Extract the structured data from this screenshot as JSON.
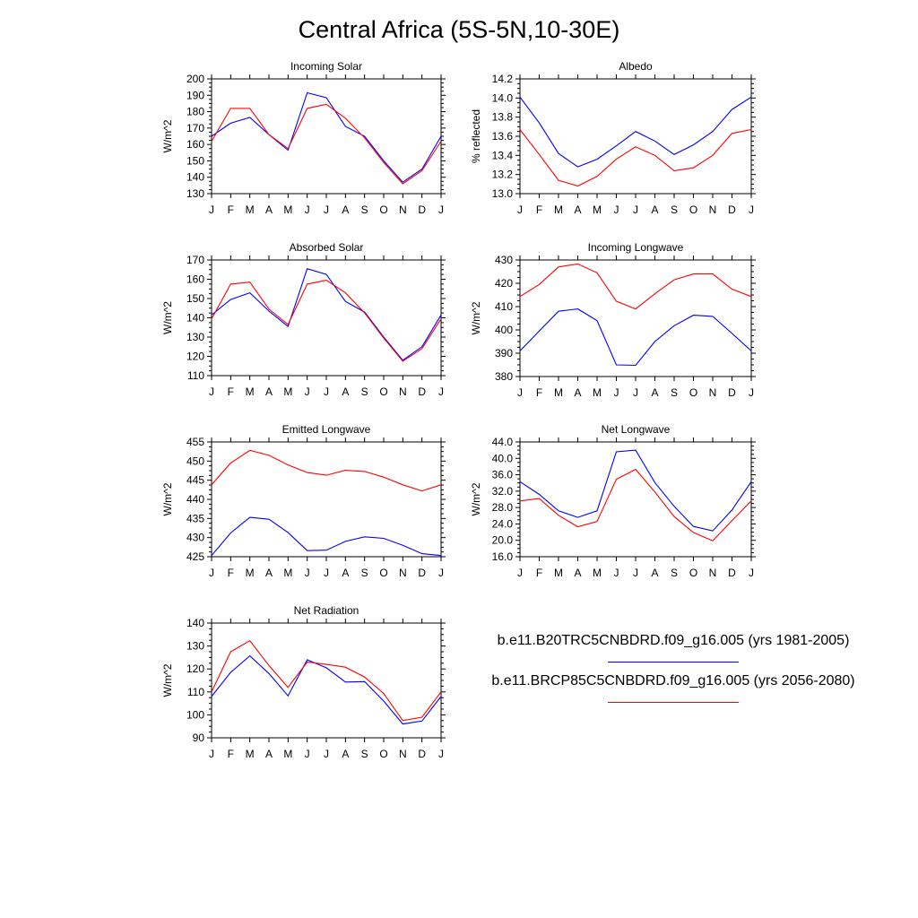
{
  "figure": {
    "title": "Central Africa (5S-5N,10-30E)",
    "months": [
      "J",
      "F",
      "M",
      "A",
      "M",
      "J",
      "J",
      "A",
      "S",
      "O",
      "N",
      "D",
      "J"
    ],
    "legend": [
      {
        "label": "b.e11.B20TRC5CNBDRD.f09_g16.005 (yrs 1981-2005)",
        "color": "#0000ff"
      },
      {
        "label": "b.e11.BRCP85C5CNBDRD.f09_g16.005 (yrs 2056-2080)",
        "color": "#ff0000"
      }
    ],
    "colors": {
      "series1": "#0000ff",
      "series2": "#ff0000"
    }
  },
  "chart_data": [
    {
      "type": "line",
      "title": "Incoming Solar",
      "xlabel": "",
      "ylabel": "W/m^2",
      "ylim": [
        130,
        200
      ],
      "yticks": [
        "130",
        "140",
        "150",
        "160",
        "170",
        "180",
        "190",
        "200"
      ],
      "series": [
        {
          "name": "b.e11.B20TRC5CNBDRD.f09_g16.005 (yrs 1981-2005)",
          "values": [
            165,
            173,
            176.5,
            166,
            156.5,
            191.5,
            188.5,
            171,
            165,
            150,
            137,
            145,
            165
          ]
        },
        {
          "name": "b.e11.BRCP85C5CNBDRD.f09_g16.005 (yrs 2056-2080)",
          "values": [
            162,
            182,
            182,
            166,
            157.5,
            182,
            184.5,
            176,
            164,
            149,
            136,
            144,
            162
          ]
        }
      ]
    },
    {
      "type": "line",
      "title": "Albedo",
      "xlabel": "",
      "ylabel": "% reflected",
      "ylim": [
        13.0,
        14.2
      ],
      "yticks": [
        "13.0",
        "13.2",
        "13.4",
        "13.6",
        "13.8",
        "14.0",
        "14.2"
      ],
      "series": [
        {
          "name": "b.e11.B20TRC5CNBDRD.f09_g16.005 (yrs 1981-2005)",
          "values": [
            14.01,
            13.74,
            13.42,
            13.28,
            13.36,
            13.5,
            13.65,
            13.55,
            13.41,
            13.51,
            13.65,
            13.88,
            14.01
          ]
        },
        {
          "name": "b.e11.BRCP85C5CNBDRD.f09_g16.005 (yrs 2056-2080)",
          "values": [
            13.67,
            13.41,
            13.14,
            13.08,
            13.18,
            13.36,
            13.49,
            13.4,
            13.24,
            13.27,
            13.4,
            13.63,
            13.67
          ]
        }
      ]
    },
    {
      "type": "line",
      "title": "Absorbed Solar",
      "xlabel": "",
      "ylabel": "W/m^2",
      "ylim": [
        110,
        170
      ],
      "yticks": [
        "110",
        "120",
        "130",
        "140",
        "150",
        "160",
        "170"
      ],
      "series": [
        {
          "name": "b.e11.B20TRC5CNBDRD.f09_g16.005 (yrs 1981-2005)",
          "values": [
            141.5,
            149.5,
            153,
            143.5,
            135.5,
            165.5,
            162.5,
            148.5,
            143,
            130,
            118,
            125,
            141.5
          ]
        },
        {
          "name": "b.e11.BRCP85C5CNBDRD.f09_g16.005 (yrs 2056-2080)",
          "values": [
            139.5,
            157.5,
            158.5,
            144.5,
            136.5,
            157.5,
            159.5,
            153,
            142.5,
            129.5,
            117.5,
            124,
            139.5
          ]
        }
      ]
    },
    {
      "type": "line",
      "title": "Incoming Longwave",
      "xlabel": "",
      "ylabel": "W/m^2",
      "ylim": [
        380,
        430
      ],
      "yticks": [
        "380",
        "390",
        "400",
        "410",
        "420",
        "430"
      ],
      "series": [
        {
          "name": "b.e11.B20TRC5CNBDRD.f09_g16.005 (yrs 1981-2005)",
          "values": [
            391,
            399.5,
            408,
            409,
            404,
            385,
            384.8,
            395,
            401.8,
            406.3,
            405.8,
            398.5,
            391
          ]
        },
        {
          "name": "b.e11.BRCP85C5CNBDRD.f09_g16.005 (yrs 2056-2080)",
          "values": [
            414.3,
            419.5,
            427,
            428.3,
            424.5,
            412.3,
            409,
            415.5,
            421.5,
            424,
            424,
            417.5,
            414.3
          ]
        }
      ]
    },
    {
      "type": "line",
      "title": "Emitted Longwave",
      "xlabel": "",
      "ylabel": "W/m^2",
      "ylim": [
        425,
        455
      ],
      "yticks": [
        "425",
        "430",
        "435",
        "440",
        "445",
        "450",
        "455"
      ],
      "series": [
        {
          "name": "b.e11.B20TRC5CNBDRD.f09_g16.005 (yrs 1981-2005)",
          "values": [
            425.3,
            431.2,
            435.3,
            434.8,
            431.3,
            426.6,
            426.7,
            429,
            430.2,
            429.8,
            428,
            425.8,
            425.3
          ]
        },
        {
          "name": "b.e11.BRCP85C5CNBDRD.f09_g16.005 (yrs 2056-2080)",
          "values": [
            443.8,
            449.5,
            452.8,
            451.5,
            449,
            447,
            446.3,
            447.6,
            447.3,
            445.8,
            443.8,
            442.2,
            443.8
          ]
        }
      ]
    },
    {
      "type": "line",
      "title": "Net Longwave",
      "xlabel": "",
      "ylabel": "W/m^2",
      "ylim": [
        16.0,
        44.0
      ],
      "yticks": [
        "16.0",
        "20.0",
        "24.0",
        "28.0",
        "32.0",
        "36.0",
        "40.0",
        "44.0"
      ],
      "series": [
        {
          "name": "b.e11.B20TRC5CNBDRD.f09_g16.005 (yrs 1981-2005)",
          "values": [
            34.3,
            31.2,
            27.2,
            25.6,
            27.2,
            41.6,
            42,
            34.1,
            28.3,
            23.4,
            22.3,
            27.4,
            34.3
          ]
        },
        {
          "name": "b.e11.BRCP85C5CNBDRD.f09_g16.005 (yrs 2056-2080)",
          "values": [
            29.6,
            30.2,
            26.1,
            23.3,
            24.6,
            34.9,
            37.3,
            31.8,
            25.8,
            21.9,
            19.9,
            24.8,
            29.6
          ]
        }
      ]
    },
    {
      "type": "line",
      "title": "Net Radiation",
      "xlabel": "",
      "ylabel": "W/m^2",
      "ylim": [
        90,
        140
      ],
      "yticks": [
        "90",
        "100",
        "110",
        "120",
        "130",
        "140"
      ],
      "series": [
        {
          "name": "b.e11.B20TRC5CNBDRD.f09_g16.005 (yrs 1981-2005)",
          "values": [
            108,
            118.5,
            125.7,
            118,
            108.3,
            124,
            120.5,
            114.3,
            114.5,
            106,
            96,
            97.3,
            108
          ]
        },
        {
          "name": "b.e11.BRCP85C5CNBDRD.f09_g16.005 (yrs 2056-2080)",
          "values": [
            110,
            127.5,
            132.3,
            121.5,
            112,
            123,
            122,
            120.8,
            116.5,
            109.3,
            97.5,
            99,
            110
          ]
        }
      ]
    }
  ]
}
